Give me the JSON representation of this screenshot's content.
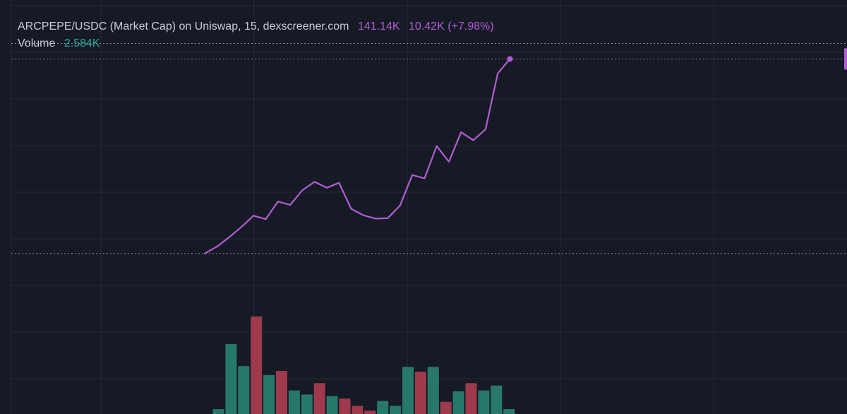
{
  "legend": {
    "symbol_text": "ARCPEPE/USDC (Market Cap) on Uniswap, 15, dexscreener.com",
    "last_value": "141.14K",
    "change": "10.42K (+7.98%)",
    "volume_label": "Volume",
    "volume_value": "2.584K"
  },
  "colors": {
    "background": "#161a25",
    "grid": "#262b38",
    "line": "#b35cd6",
    "up": "#26786b",
    "down": "#9e3a4c",
    "legend_text": "#c9ccd6",
    "volume_value": "#26a69a"
  },
  "chart_data": {
    "type": "line",
    "y_range": [
      76,
      152
    ],
    "last_price": 141.14,
    "reference_lines": [
      144.3,
      101.5
    ],
    "series": [
      {
        "values": [
          101.5,
          102.9,
          104.8,
          106.9,
          109.2,
          108.5,
          112.1,
          111.4,
          114.4,
          116.1,
          114.9,
          115.9,
          110.6,
          109.3,
          108.6,
          108.7,
          111.3,
          117.5,
          116.8,
          123.4,
          120.2,
          126.2,
          124.6,
          126.8,
          138.2,
          141.14
        ]
      }
    ],
    "volume": [
      {
        "value": 0.3,
        "dir": "up"
      },
      {
        "value": 4.3,
        "dir": "up"
      },
      {
        "value": 2.95,
        "dir": "up"
      },
      {
        "value": 6.0,
        "dir": "down"
      },
      {
        "value": 2.4,
        "dir": "up"
      },
      {
        "value": 2.65,
        "dir": "down"
      },
      {
        "value": 1.45,
        "dir": "up"
      },
      {
        "value": 1.2,
        "dir": "up"
      },
      {
        "value": 1.9,
        "dir": "down"
      },
      {
        "value": 1.1,
        "dir": "up"
      },
      {
        "value": 0.95,
        "dir": "down"
      },
      {
        "value": 0.5,
        "dir": "down"
      },
      {
        "value": 0.2,
        "dir": "down"
      },
      {
        "value": 0.8,
        "dir": "up"
      },
      {
        "value": 0.5,
        "dir": "up"
      },
      {
        "value": 2.9,
        "dir": "up"
      },
      {
        "value": 2.6,
        "dir": "down"
      },
      {
        "value": 2.9,
        "dir": "up"
      },
      {
        "value": 0.75,
        "dir": "down"
      },
      {
        "value": 1.4,
        "dir": "up"
      },
      {
        "value": 1.9,
        "dir": "down"
      },
      {
        "value": 1.45,
        "dir": "up"
      },
      {
        "value": 1.75,
        "dir": "up"
      },
      {
        "value": 0.3,
        "dir": "up"
      }
    ]
  }
}
